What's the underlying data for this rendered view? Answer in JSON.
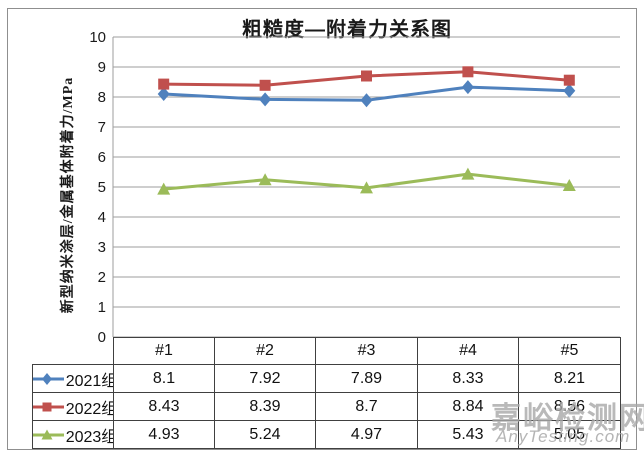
{
  "watermark": {
    "cn": "嘉峪检测网",
    "en": "AnyTesting.com"
  },
  "chart_data": {
    "type": "line",
    "title": "粗糙度—附着力关系图",
    "xlabel": "",
    "ylabel": "新型纳米涂层/金属基体附着力/MPa",
    "categories": [
      "#1",
      "#2",
      "#3",
      "#4",
      "#5"
    ],
    "series": [
      {
        "name": "2021组",
        "color": "#4F81BD",
        "marker": "diamond",
        "values": [
          8.1,
          7.92,
          7.89,
          8.33,
          8.21
        ]
      },
      {
        "name": "2022组",
        "color": "#C0504D",
        "marker": "square",
        "values": [
          8.43,
          8.39,
          8.7,
          8.84,
          8.56
        ]
      },
      {
        "name": "2023组",
        "color": "#9BBB59",
        "marker": "triangle",
        "values": [
          4.93,
          5.24,
          4.97,
          5.43,
          5.05
        ]
      }
    ],
    "ylim": [
      0,
      10
    ],
    "yticks": [
      0,
      1,
      2,
      3,
      4,
      5,
      6,
      7,
      8,
      9,
      10
    ],
    "grid": true,
    "legend_position": "table-left",
    "grid_color": "#9e9e9e"
  }
}
